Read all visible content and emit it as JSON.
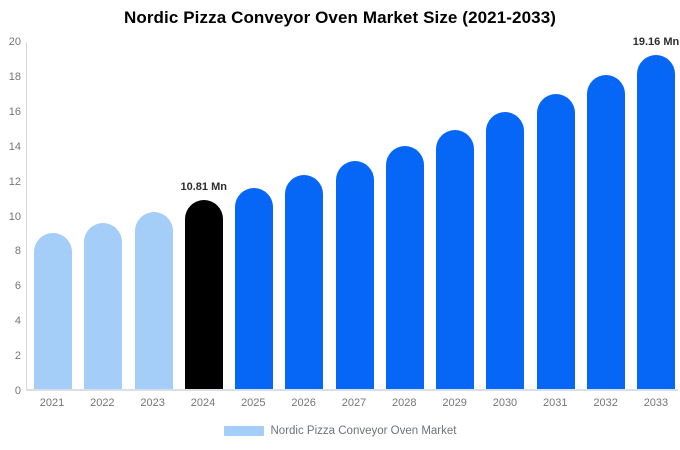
{
  "chart_data": {
    "type": "bar",
    "title": "Nordic Pizza Conveyor Oven Market Size (2021-2033)",
    "unit": "Mn",
    "categories": [
      "2021",
      "2022",
      "2023",
      "2024",
      "2025",
      "2026",
      "2027",
      "2028",
      "2029",
      "2030",
      "2031",
      "2032",
      "2033"
    ],
    "values": [
      8.93,
      9.52,
      10.14,
      10.81,
      11.52,
      12.28,
      13.09,
      13.95,
      14.87,
      15.85,
      16.89,
      17.98,
      19.16
    ],
    "bar_labels": [
      "",
      "",
      "",
      "10.81 Mn",
      "",
      "",
      "",
      "",
      "",
      "",
      "",
      "",
      "19.16 Mn"
    ],
    "bar_color_keys": [
      "historical",
      "historical",
      "historical",
      "highlight",
      "forecast",
      "forecast",
      "forecast",
      "forecast",
      "forecast",
      "forecast",
      "forecast",
      "forecast",
      "forecast"
    ],
    "colors": {
      "historical": "#a4cdf8",
      "highlight": "#000000",
      "forecast": "#0667f6"
    },
    "ylim": [
      0,
      20
    ],
    "yticks": [
      0,
      2,
      4,
      6,
      8,
      10,
      12,
      14,
      16,
      18,
      20
    ],
    "grid": false,
    "legend_position": "bottom",
    "legend": {
      "label": "Nordic Pizza Conveyor Oven Market",
      "swatch_color": "#a4cdf8"
    }
  }
}
